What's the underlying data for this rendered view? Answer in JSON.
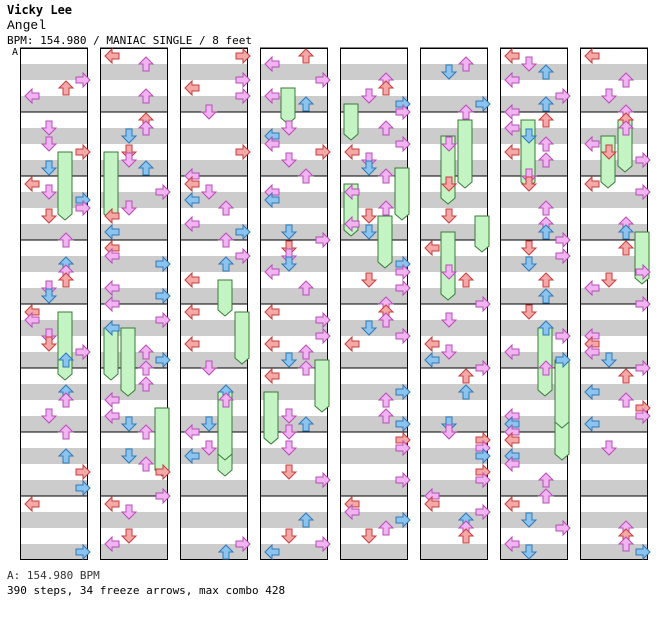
{
  "header": {
    "artist": "Vicky Lee",
    "title": "Angel",
    "info": "BPM: 154.980 / MANIAC SINGLE / 8 feet",
    "bpm_marker": "A"
  },
  "footer": {
    "bpm_line": "A: 154.980 BPM",
    "stats_line": "390 steps, 34 freeze arrows, max combo 428"
  },
  "colors": {
    "quarter": "#f4a8a8",
    "eighth": "#8cc4f0",
    "sixteenth": "#f0b4f0",
    "freeze": "#c4f4c4",
    "stripe": "#cccccc"
  },
  "chart": {
    "columns": 8,
    "measures_per_column": 8,
    "lanes": [
      "left",
      "down",
      "up",
      "right"
    ]
  }
}
